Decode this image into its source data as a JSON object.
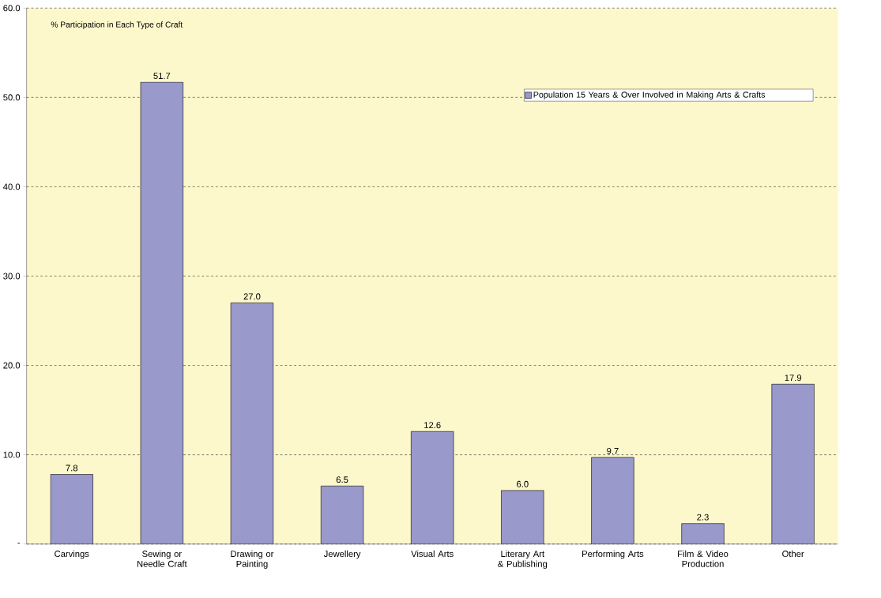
{
  "chart_data": {
    "type": "bar",
    "title": "% Participation in Each Type of Craft",
    "categories": [
      "Carvings",
      "Sewing or Needle Craft",
      "Drawing or Painting",
      "Jewellery",
      "Visual Arts",
      "Literary Art & Publishing",
      "Performing Arts",
      "Film & Video Production",
      "Other"
    ],
    "series": [
      {
        "name": "Population 15 Years & Over Involved in Making Arts & Crafts",
        "color": "#9999cc",
        "values": [
          7.8,
          51.7,
          27.0,
          6.5,
          12.6,
          6.0,
          9.7,
          2.3,
          17.9
        ],
        "value_labels": [
          "7.8",
          "51.7",
          "27.0",
          "6.5",
          "12.6",
          "6.0",
          "9.7",
          "2.3",
          "17.9"
        ]
      }
    ],
    "ylim": [
      0,
      60
    ],
    "yticks": [
      {
        "value": 0,
        "label": "-"
      },
      {
        "value": 10,
        "label": "10.0"
      },
      {
        "value": 20,
        "label": "20.0"
      },
      {
        "value": 30,
        "label": "30.0"
      },
      {
        "value": 40,
        "label": "40.0"
      },
      {
        "value": 50,
        "label": "50.0"
      },
      {
        "value": 60,
        "label": "60.0"
      }
    ],
    "grid": "y",
    "legend": "top right"
  }
}
